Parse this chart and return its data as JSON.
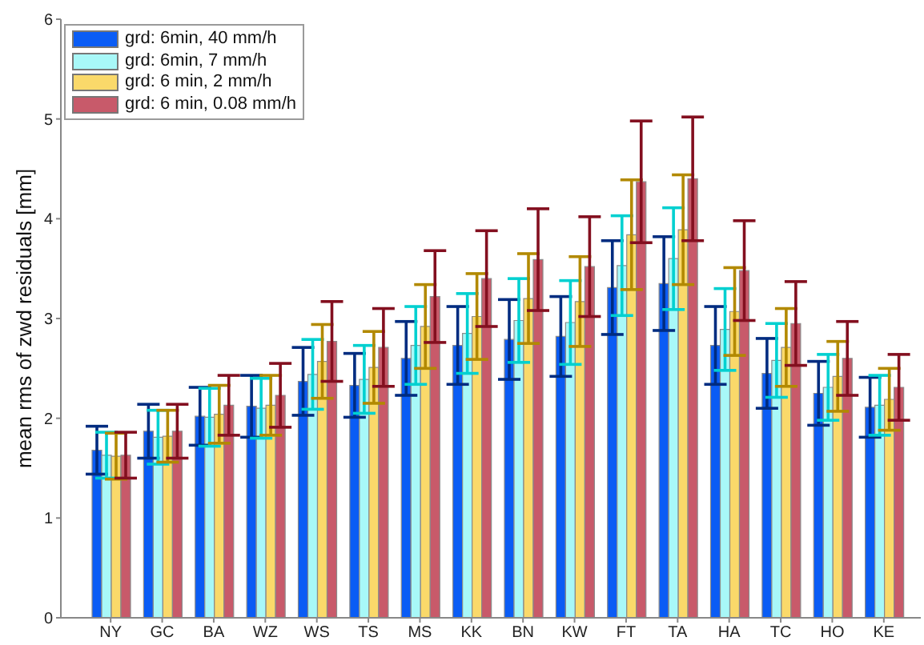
{
  "chart_data": {
    "type": "bar",
    "ylabel": "mean rms of zwd residuals [mm]",
    "categories": [
      "NY",
      "GC",
      "BA",
      "WZ",
      "WS",
      "TS",
      "MS",
      "KK",
      "BN",
      "KW",
      "FT",
      "TA",
      "HA",
      "TC",
      "HO",
      "KE"
    ],
    "series": [
      {
        "name": "grd: 6min, 40 mm/h",
        "color": "#0a5cf5",
        "values": [
          1.68,
          1.87,
          2.02,
          2.12,
          2.37,
          2.33,
          2.6,
          2.73,
          2.79,
          2.82,
          3.31,
          3.35,
          2.73,
          2.45,
          2.25,
          2.11
        ],
        "errors": [
          0.24,
          0.27,
          0.29,
          0.31,
          0.34,
          0.32,
          0.37,
          0.39,
          0.4,
          0.4,
          0.47,
          0.47,
          0.39,
          0.35,
          0.32,
          0.3
        ]
      },
      {
        "name": "grd: 6min, 7 mm/h",
        "color": "#a8f8f8",
        "values": [
          1.63,
          1.81,
          2.01,
          2.1,
          2.44,
          2.39,
          2.73,
          2.85,
          2.98,
          2.96,
          3.53,
          3.6,
          2.89,
          2.58,
          2.31,
          2.13
        ],
        "errors": [
          0.23,
          0.27,
          0.29,
          0.3,
          0.35,
          0.34,
          0.39,
          0.4,
          0.42,
          0.42,
          0.5,
          0.51,
          0.41,
          0.37,
          0.33,
          0.3
        ]
      },
      {
        "name": "grd: 6 min, 2 mm/h",
        "color": "#fad96a",
        "values": [
          1.62,
          1.82,
          2.04,
          2.13,
          2.57,
          2.51,
          2.92,
          3.02,
          3.2,
          3.17,
          3.84,
          3.89,
          3.07,
          2.71,
          2.42,
          2.19
        ],
        "errors": [
          0.23,
          0.26,
          0.29,
          0.3,
          0.37,
          0.36,
          0.42,
          0.43,
          0.45,
          0.45,
          0.55,
          0.55,
          0.44,
          0.39,
          0.35,
          0.31
        ]
      },
      {
        "name": "grd: 6 min, 0.08 mm/h",
        "color": "#c85a6a",
        "values": [
          1.63,
          1.87,
          2.13,
          2.23,
          2.77,
          2.71,
          3.22,
          3.4,
          3.59,
          3.52,
          4.37,
          4.4,
          3.48,
          2.95,
          2.6,
          2.31
        ],
        "errors": [
          0.23,
          0.27,
          0.3,
          0.32,
          0.4,
          0.39,
          0.46,
          0.48,
          0.51,
          0.5,
          0.61,
          0.62,
          0.5,
          0.42,
          0.37,
          0.33
        ]
      }
    ],
    "ylim": [
      0,
      6
    ],
    "yticks": [
      0,
      1,
      2,
      3,
      4,
      5,
      6
    ],
    "legend": "top left"
  }
}
